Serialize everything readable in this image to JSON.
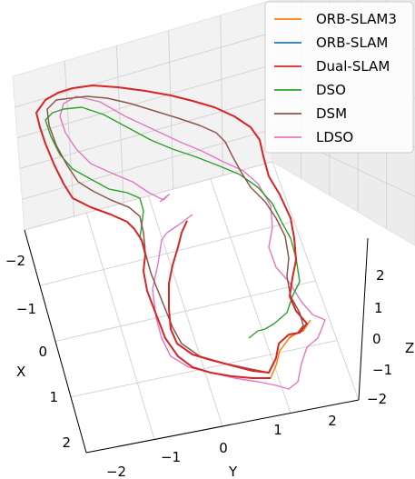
{
  "chart_data": {
    "type": "line",
    "projection": "3d",
    "grid": true,
    "legend_position": "top-right",
    "axes": {
      "x": {
        "label": "X",
        "ticks": [
          "−2",
          "−1",
          "0",
          "1",
          "2"
        ]
      },
      "y": {
        "label": "Y",
        "ticks": [
          "−2",
          "−1",
          "0",
          "1",
          "2"
        ]
      },
      "z": {
        "label": "Z",
        "ticks": [
          "2",
          "1",
          "0",
          "−1",
          "−2"
        ]
      }
    },
    "series": [
      {
        "name": "ORB-SLAM3",
        "color": "#ff7f0e"
      },
      {
        "name": "ORB-SLAM",
        "color": "#1f77b4"
      },
      {
        "name": "Dual-SLAM",
        "color": "#d62728"
      },
      {
        "name": "DSO",
        "color": "#2ca02c"
      },
      {
        "name": "DSM",
        "color": "#8c564b"
      },
      {
        "name": "LDSO",
        "color": "#e377c2"
      }
    ]
  }
}
